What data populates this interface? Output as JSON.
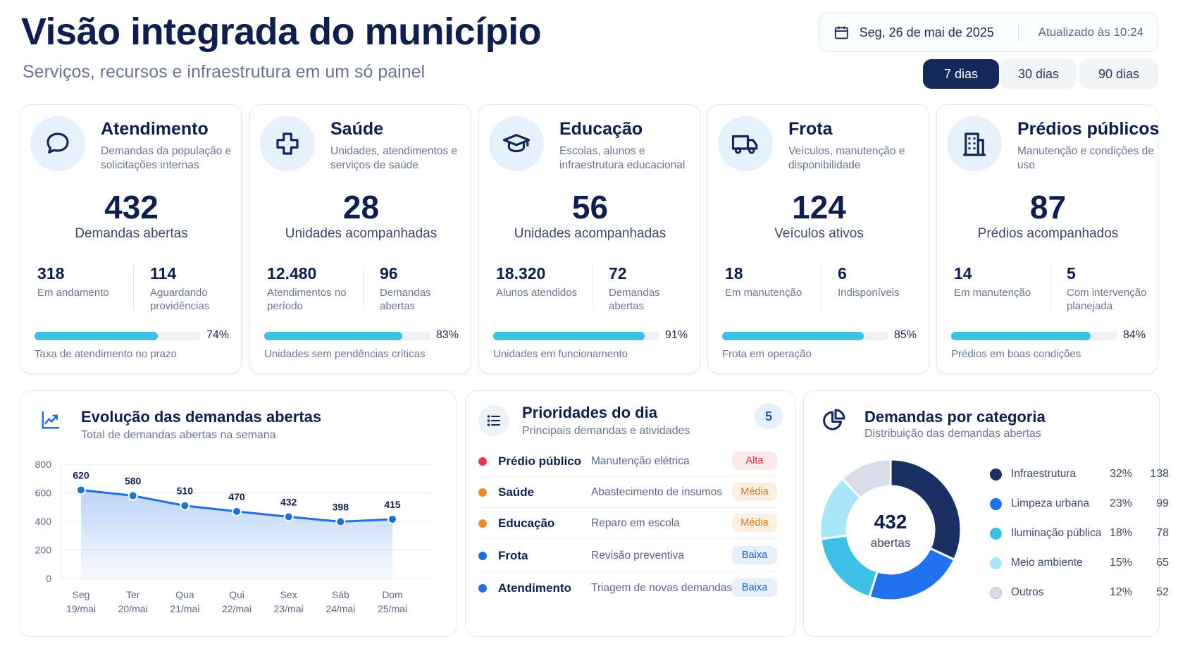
{
  "header": {
    "title": "Visão integrada do município",
    "subtitle": "Serviços, recursos e infraestrutura em um só painel",
    "date": "Seg, 26 de mai de 2025",
    "updated": "Atualizado às 10:24",
    "ranges": [
      "7 dias",
      "30 dias",
      "90 dias"
    ],
    "active_range": "7 dias"
  },
  "cards": [
    {
      "icon": "chat-bubble-icon",
      "title": "Atendimento",
      "desc": "Demandas da população e solicitações internas",
      "big": "432",
      "big_label": "Demandas abertas",
      "sub1_value": "318",
      "sub1_label": "Em andamento",
      "sub2_value": "114",
      "sub2_label": "Aguardando providências",
      "progress": 74,
      "progress_text": "74%",
      "progress_label": "Taxa de atendimento no prazo"
    },
    {
      "icon": "medical-cross-icon",
      "title": "Saúde",
      "desc": "Unidades, atendimentos e serviços de saúde",
      "big": "28",
      "big_label": "Unidades acompanhadas",
      "sub1_value": "12.480",
      "sub1_label": "Atendimentos no período",
      "sub2_value": "96",
      "sub2_label": "Demandas abertas",
      "progress": 83,
      "progress_text": "83%",
      "progress_label": "Unidades sem pendências críticas"
    },
    {
      "icon": "graduation-cap-icon",
      "title": "Educação",
      "desc": "Escolas, alunos e infraestrutura educacional",
      "big": "56",
      "big_label": "Unidades acompanhadas",
      "sub1_value": "18.320",
      "sub1_label": "Alunos atendidos",
      "sub2_value": "72",
      "sub2_label": "Demandas abertas",
      "progress": 91,
      "progress_text": "91%",
      "progress_label": "Unidades em funcionamento"
    },
    {
      "icon": "truck-icon",
      "title": "Frota",
      "desc": "Veículos, manutenção e disponibilidade",
      "big": "124",
      "big_label": "Veículos ativos",
      "sub1_value": "18",
      "sub1_label": "Em manutenção",
      "sub2_value": "6",
      "sub2_label": "Indisponíveis",
      "progress": 85,
      "progress_text": "85%",
      "progress_label": "Frota em operação"
    },
    {
      "icon": "building-icon",
      "title": "Prédios públicos",
      "desc": "Manutenção e condições de uso",
      "big": "87",
      "big_label": "Prédios acompanhados",
      "sub1_value": "14",
      "sub1_label": "Em manutenção",
      "sub2_value": "5",
      "sub2_label": "Com intervenção planejada",
      "progress": 84,
      "progress_text": "84%",
      "progress_label": "Prédios em boas condições"
    }
  ],
  "evolution": {
    "title": "Evolução das demandas abertas",
    "subtitle": "Total de demandas abertas na semana"
  },
  "chart_data": {
    "type": "area",
    "title": "Evolução das demandas abertas",
    "subtitle": "Total de demandas abertas na semana",
    "categories": [
      "Seg 19/mai",
      "Ter 20/mai",
      "Qua 21/mai",
      "Qui 22/mai",
      "Sex 23/mai",
      "Sáb 24/mai",
      "Dom 25/mai"
    ],
    "day_labels": [
      "Seg",
      "Ter",
      "Qua",
      "Qui",
      "Sex",
      "Sáb",
      "Dom"
    ],
    "date_labels": [
      "19/mai",
      "20/mai",
      "21/mai",
      "22/mai",
      "23/mai",
      "24/mai",
      "25/mai"
    ],
    "values": [
      620,
      580,
      510,
      470,
      432,
      398,
      415
    ],
    "ylim": [
      0,
      800
    ],
    "yticks": [
      0,
      200,
      400,
      600,
      800
    ],
    "grid": true,
    "color": "#1f6fe0"
  },
  "priorities": {
    "title": "Prioridades do dia",
    "subtitle": "Principais demandas e atividades",
    "count": "5",
    "items": [
      {
        "category": "Prédio público",
        "task": "Manutenção elétrica",
        "level": "Alta",
        "dot": "#e53945",
        "badge_bg": "#fde8ea",
        "badge_fg": "#d63040"
      },
      {
        "category": "Saúde",
        "task": "Abastecimento de insumos",
        "level": "Média",
        "dot": "#f28a26",
        "badge_bg": "#fdf0e1",
        "badge_fg": "#d9781a"
      },
      {
        "category": "Educação",
        "task": "Reparo em escola",
        "level": "Média",
        "dot": "#f28a26",
        "badge_bg": "#fdf0e1",
        "badge_fg": "#d9781a"
      },
      {
        "category": "Frota",
        "task": "Revisão preventiva",
        "level": "Baixa",
        "dot": "#1f6fe0",
        "badge_bg": "#e4f0fb",
        "badge_fg": "#1a5fd0"
      },
      {
        "category": "Atendimento",
        "task": "Triagem de novas demandas",
        "level": "Baixa",
        "dot": "#1f6fe0",
        "badge_bg": "#e4f0fb",
        "badge_fg": "#1a5fd0"
      }
    ]
  },
  "categories": {
    "title": "Demandas por categoria",
    "subtitle": "Distribuição das demandas abertas",
    "center_value": "432",
    "center_label": "abertas",
    "items": [
      {
        "name": "Infraestrutura",
        "pct": "32%",
        "count": "138",
        "value": 138,
        "color": "#1a2f63"
      },
      {
        "name": "Limpeza urbana",
        "pct": "23%",
        "count": "99",
        "value": 99,
        "color": "#1f72ea"
      },
      {
        "name": "Iluminação pública",
        "pct": "18%",
        "count": "78",
        "value": 78,
        "color": "#3cc0e6"
      },
      {
        "name": "Meio ambiente",
        "pct": "15%",
        "count": "65",
        "value": 65,
        "color": "#a8e6f8"
      },
      {
        "name": "Outros",
        "pct": "12%",
        "count": "52",
        "value": 52,
        "color": "#d6dce6"
      }
    ]
  }
}
